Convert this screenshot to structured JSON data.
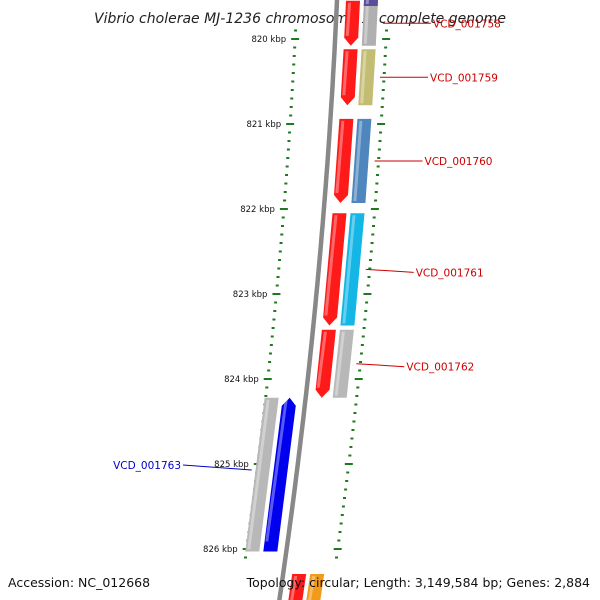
{
  "title": "Vibrio cholerae MJ-1236 chromosome 1, complete genome",
  "footer": {
    "accession": "Accession: NC_012668",
    "topology": "Topology: circular; Length: 3,149,584 bp; Genes: 2,884"
  },
  "colors": {
    "ring": "#888888",
    "tick": "#1f7a1f",
    "label_strand1": "#cc0000",
    "label_strand2": "#0000cc"
  },
  "ruler": [
    {
      "label": "820 kbp",
      "kbp": 820
    },
    {
      "label": "821 kbp",
      "kbp": 821
    },
    {
      "label": "822 kbp",
      "kbp": 822
    },
    {
      "label": "823 kbp",
      "kbp": 823
    },
    {
      "label": "824 kbp",
      "kbp": 824
    },
    {
      "label": "825 kbp",
      "kbp": 825
    },
    {
      "label": "826 kbp",
      "kbp": 826
    }
  ],
  "genes": [
    {
      "name": "VCD_001758",
      "strand": "outer",
      "start_kbp": 819.55,
      "end_kbp": 820.08,
      "color": "#ff1a1a",
      "cog_color": "#b0b0b0",
      "label_color": "#cc0000"
    },
    {
      "name": "VCD_001759",
      "strand": "outer",
      "start_kbp": 820.12,
      "end_kbp": 820.78,
      "color": "#ff1a1a",
      "cog_color": "#c2bd72",
      "label_color": "#cc0000"
    },
    {
      "name": "VCD_001760",
      "strand": "outer",
      "start_kbp": 820.94,
      "end_kbp": 821.93,
      "color": "#ff1a1a",
      "cog_color": "#4f86bd",
      "label_color": "#cc0000"
    },
    {
      "name": "VCD_001761",
      "strand": "outer",
      "start_kbp": 822.05,
      "end_kbp": 823.37,
      "color": "#ff1a1a",
      "cog_color": "#14b6e6",
      "label_color": "#cc0000"
    },
    {
      "name": "VCD_001762",
      "strand": "outer",
      "start_kbp": 823.42,
      "end_kbp": 824.22,
      "color": "#ff1a1a",
      "cog_color": "#b8b8b8",
      "label_color": "#cc0000"
    },
    {
      "name": "VCD_001763",
      "strand": "inner",
      "start_kbp": 824.22,
      "end_kbp": 826.03,
      "color": "#0000ee",
      "cog_color": "#b8b8b8",
      "label_color": "#0000cc"
    }
  ]
}
